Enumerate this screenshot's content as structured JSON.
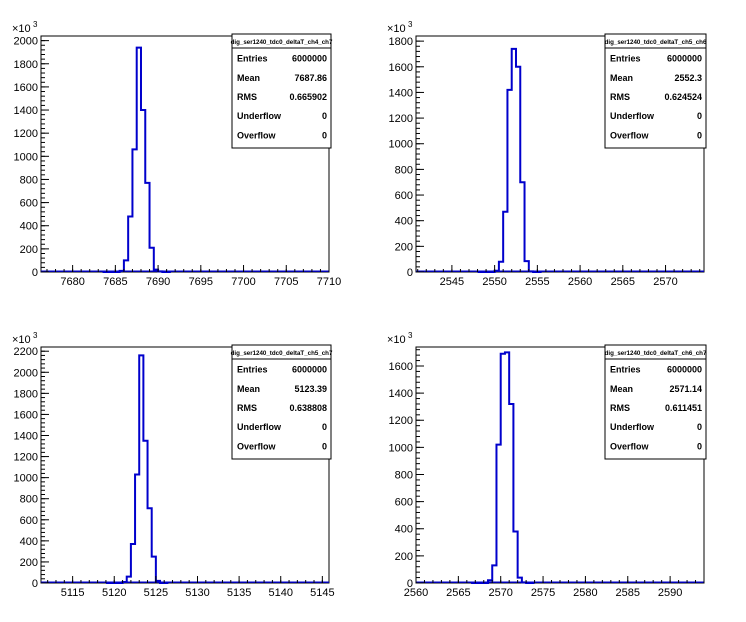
{
  "colors": {
    "histogram_line": "#0000cc",
    "axis": "#000000",
    "frame": "#000000",
    "background": "#ffffff"
  },
  "chart_data": [
    {
      "type": "bar",
      "histogram_name": "dig_ser1240_tdc0_deltaT_ch4_ch7",
      "x_ticks": [
        7680,
        7685,
        7690,
        7695,
        7700,
        7705,
        7710
      ],
      "xlim": [
        7676.3,
        7710
      ],
      "y_ticks": [
        0,
        200,
        400,
        600,
        800,
        1000,
        1200,
        1400,
        1600,
        1800,
        2000
      ],
      "ylim": [
        0,
        2040
      ],
      "y_multiplier": "×10",
      "y_multiplier_exp": "3",
      "bin_width": 0.5,
      "bins_x": [
        7685.5,
        7686,
        7686.5,
        7687,
        7687.5,
        7688,
        7688.5,
        7689,
        7689.5,
        7690
      ],
      "values": [
        10,
        100,
        480,
        1060,
        1940,
        1400,
        770,
        210,
        20,
        5
      ],
      "stats": [
        {
          "label": "Entries",
          "value": "6000000"
        },
        {
          "label": "Mean",
          "value": "7687.86"
        },
        {
          "label": "RMS",
          "value": "0.665902"
        },
        {
          "label": "Underflow",
          "value": "0"
        },
        {
          "label": "Overflow",
          "value": "0"
        }
      ]
    },
    {
      "type": "bar",
      "histogram_name": "dig_ser1240_tdc0_deltaT_ch5_ch6",
      "x_ticks": [
        2545,
        2550,
        2555,
        2560,
        2565,
        2570
      ],
      "xlim": [
        2540.8,
        2574.5
      ],
      "y_ticks": [
        0,
        200,
        400,
        600,
        800,
        1000,
        1200,
        1400,
        1600,
        1800
      ],
      "ylim": [
        0,
        1840
      ],
      "y_multiplier": "×10",
      "y_multiplier_exp": "3",
      "bin_width": 0.5,
      "bins_x": [
        2550,
        2550.5,
        2551,
        2551.5,
        2552,
        2552.5,
        2553,
        2553.5,
        2554
      ],
      "values": [
        10,
        80,
        470,
        1420,
        1740,
        1600,
        700,
        85,
        5
      ],
      "stats": [
        {
          "label": "Entries",
          "value": "6000000"
        },
        {
          "label": "Mean",
          "value": "2552.3"
        },
        {
          "label": "RMS",
          "value": "0.624524"
        },
        {
          "label": "Underflow",
          "value": "0"
        },
        {
          "label": "Overflow",
          "value": "0"
        }
      ]
    },
    {
      "type": "bar",
      "histogram_name": "dig_ser1240_tdc0_deltaT_ch5_ch7",
      "x_ticks": [
        5115,
        5120,
        5125,
        5130,
        5135,
        5140,
        5145
      ],
      "xlim": [
        5111.2,
        5145.8
      ],
      "y_ticks": [
        0,
        200,
        400,
        600,
        800,
        1000,
        1200,
        1400,
        1600,
        1800,
        2000,
        2200
      ],
      "ylim": [
        0,
        2240
      ],
      "y_multiplier": "×10",
      "y_multiplier_exp": "3",
      "bin_width": 0.5,
      "bins_x": [
        5121,
        5121.5,
        5122,
        5122.5,
        5123,
        5123.5,
        5124,
        5124.5,
        5125
      ],
      "values": [
        10,
        60,
        370,
        1030,
        2160,
        1350,
        710,
        250,
        20
      ],
      "stats": [
        {
          "label": "Entries",
          "value": "6000000"
        },
        {
          "label": "Mean",
          "value": "5123.39"
        },
        {
          "label": "RMS",
          "value": "0.638808"
        },
        {
          "label": "Underflow",
          "value": "0"
        },
        {
          "label": "Overflow",
          "value": "0"
        }
      ]
    },
    {
      "type": "bar",
      "histogram_name": "dig_ser1240_tdc0_deltaT_ch6_ch7",
      "x_ticks": [
        2560,
        2565,
        2570,
        2575,
        2580,
        2585,
        2590
      ],
      "xlim": [
        2560,
        2594
      ],
      "y_ticks": [
        0,
        200,
        400,
        600,
        800,
        1000,
        1200,
        1400,
        1600
      ],
      "ylim": [
        0,
        1740
      ],
      "y_multiplier": "×10",
      "y_multiplier_exp": "3",
      "bin_width": 0.5,
      "bins_x": [
        2568.5,
        2569,
        2569.5,
        2570,
        2570.5,
        2571,
        2571.5,
        2572,
        2572.5
      ],
      "values": [
        20,
        130,
        1020,
        1690,
        1700,
        1320,
        380,
        40,
        5
      ],
      "stats": [
        {
          "label": "Entries",
          "value": "6000000"
        },
        {
          "label": "Mean",
          "value": "2571.14"
        },
        {
          "label": "RMS",
          "value": "0.611451"
        },
        {
          "label": "Underflow",
          "value": "0"
        },
        {
          "label": "Overflow",
          "value": "0"
        }
      ]
    }
  ]
}
